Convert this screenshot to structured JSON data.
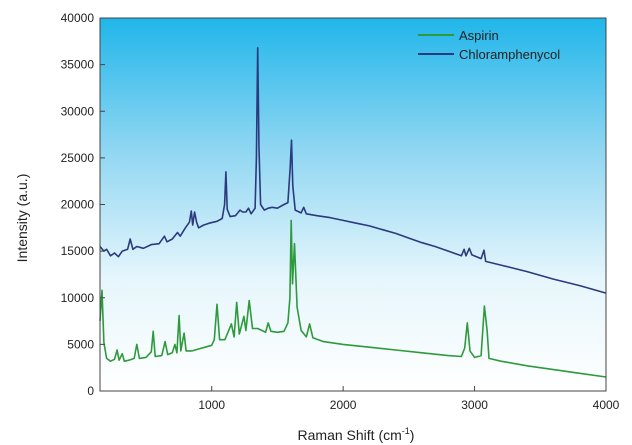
{
  "chart_data": {
    "type": "line",
    "xlabel": "Raman Shift (cm",
    "xlabel_sup": "-1",
    "xlabel_tail": ")",
    "ylabel": "Intensity (a.u.)",
    "xlim": [
      150,
      4000
    ],
    "ylim": [
      0,
      40000
    ],
    "x_ticks": [
      1000,
      2000,
      3000,
      4000
    ],
    "y_ticks": [
      0,
      5000,
      10000,
      15000,
      20000,
      25000,
      30000,
      35000,
      40000
    ],
    "grid": false,
    "legend_position": "top-right",
    "background": "gradient sky blue (top) to white (bottom)",
    "series": [
      {
        "name": "Aspirin",
        "color": "#2e9a3c",
        "points": [
          [
            150,
            7500
          ],
          [
            165,
            10800
          ],
          [
            180,
            5200
          ],
          [
            200,
            3500
          ],
          [
            230,
            3200
          ],
          [
            260,
            3400
          ],
          [
            280,
            4400
          ],
          [
            295,
            3300
          ],
          [
            320,
            4000
          ],
          [
            335,
            3200
          ],
          [
            370,
            3300
          ],
          [
            410,
            3500
          ],
          [
            430,
            5000
          ],
          [
            450,
            3500
          ],
          [
            500,
            3600
          ],
          [
            540,
            4200
          ],
          [
            555,
            6400
          ],
          [
            570,
            3700
          ],
          [
            620,
            3800
          ],
          [
            645,
            5300
          ],
          [
            665,
            3900
          ],
          [
            700,
            4100
          ],
          [
            720,
            5000
          ],
          [
            735,
            4100
          ],
          [
            752,
            8100
          ],
          [
            765,
            4300
          ],
          [
            790,
            6200
          ],
          [
            805,
            4300
          ],
          [
            850,
            4300
          ],
          [
            900,
            4500
          ],
          [
            950,
            4700
          ],
          [
            1000,
            4900
          ],
          [
            1020,
            5500
          ],
          [
            1040,
            9300
          ],
          [
            1060,
            5500
          ],
          [
            1100,
            5500
          ],
          [
            1150,
            7200
          ],
          [
            1170,
            5800
          ],
          [
            1190,
            9500
          ],
          [
            1210,
            6100
          ],
          [
            1245,
            8000
          ],
          [
            1260,
            6500
          ],
          [
            1285,
            9700
          ],
          [
            1310,
            6700
          ],
          [
            1350,
            6700
          ],
          [
            1380,
            6500
          ],
          [
            1410,
            6300
          ],
          [
            1430,
            7300
          ],
          [
            1450,
            6400
          ],
          [
            1500,
            6300
          ],
          [
            1550,
            6400
          ],
          [
            1580,
            7300
          ],
          [
            1595,
            10000
          ],
          [
            1605,
            18300
          ],
          [
            1615,
            11500
          ],
          [
            1630,
            15800
          ],
          [
            1650,
            9000
          ],
          [
            1680,
            6500
          ],
          [
            1720,
            5800
          ],
          [
            1745,
            7200
          ],
          [
            1770,
            5700
          ],
          [
            1850,
            5300
          ],
          [
            2000,
            5000
          ],
          [
            2200,
            4700
          ],
          [
            2400,
            4400
          ],
          [
            2600,
            4100
          ],
          [
            2800,
            3800
          ],
          [
            2900,
            3700
          ],
          [
            2925,
            4600
          ],
          [
            2945,
            7300
          ],
          [
            2965,
            4300
          ],
          [
            3000,
            3600
          ],
          [
            3050,
            3800
          ],
          [
            3075,
            9100
          ],
          [
            3095,
            6500
          ],
          [
            3110,
            3500
          ],
          [
            3200,
            3200
          ],
          [
            3400,
            2700
          ],
          [
            3600,
            2300
          ],
          [
            3800,
            1900
          ],
          [
            4000,
            1500
          ]
        ]
      },
      {
        "name": "Chloramphenycol",
        "color": "#2b3a7d",
        "points": [
          [
            150,
            15500
          ],
          [
            180,
            15000
          ],
          [
            200,
            15200
          ],
          [
            230,
            14500
          ],
          [
            260,
            14800
          ],
          [
            290,
            14400
          ],
          [
            320,
            15000
          ],
          [
            360,
            15200
          ],
          [
            380,
            16300
          ],
          [
            400,
            15200
          ],
          [
            430,
            15500
          ],
          [
            480,
            15300
          ],
          [
            540,
            15700
          ],
          [
            600,
            15800
          ],
          [
            640,
            16600
          ],
          [
            660,
            16000
          ],
          [
            700,
            16300
          ],
          [
            740,
            17000
          ],
          [
            760,
            16600
          ],
          [
            800,
            17500
          ],
          [
            830,
            18100
          ],
          [
            845,
            19300
          ],
          [
            855,
            17800
          ],
          [
            870,
            19200
          ],
          [
            885,
            18100
          ],
          [
            900,
            17500
          ],
          [
            940,
            17800
          ],
          [
            980,
            18000
          ],
          [
            1040,
            18200
          ],
          [
            1080,
            18500
          ],
          [
            1098,
            20000
          ],
          [
            1108,
            23500
          ],
          [
            1118,
            19500
          ],
          [
            1140,
            18700
          ],
          [
            1180,
            18800
          ],
          [
            1215,
            19400
          ],
          [
            1235,
            19200
          ],
          [
            1260,
            19200
          ],
          [
            1280,
            19600
          ],
          [
            1300,
            19000
          ],
          [
            1330,
            19600
          ],
          [
            1340,
            25000
          ],
          [
            1350,
            36800
          ],
          [
            1360,
            26000
          ],
          [
            1372,
            20000
          ],
          [
            1400,
            19400
          ],
          [
            1430,
            19600
          ],
          [
            1460,
            19700
          ],
          [
            1500,
            19600
          ],
          [
            1550,
            20000
          ],
          [
            1580,
            20200
          ],
          [
            1597,
            24000
          ],
          [
            1607,
            26900
          ],
          [
            1617,
            22000
          ],
          [
            1635,
            19400
          ],
          [
            1680,
            19100
          ],
          [
            1700,
            19700
          ],
          [
            1720,
            19000
          ],
          [
            1800,
            18800
          ],
          [
            1900,
            18600
          ],
          [
            2000,
            18300
          ],
          [
            2100,
            18000
          ],
          [
            2200,
            17700
          ],
          [
            2300,
            17300
          ],
          [
            2400,
            16900
          ],
          [
            2500,
            16400
          ],
          [
            2600,
            15900
          ],
          [
            2700,
            15500
          ],
          [
            2800,
            15000
          ],
          [
            2900,
            14500
          ],
          [
            2920,
            15200
          ],
          [
            2935,
            14500
          ],
          [
            2960,
            15300
          ],
          [
            2980,
            14600
          ],
          [
            3050,
            14200
          ],
          [
            3072,
            15100
          ],
          [
            3085,
            13900
          ],
          [
            3200,
            13500
          ],
          [
            3400,
            12800
          ],
          [
            3600,
            12000
          ],
          [
            3800,
            11300
          ],
          [
            4000,
            10500
          ]
        ]
      }
    ]
  }
}
